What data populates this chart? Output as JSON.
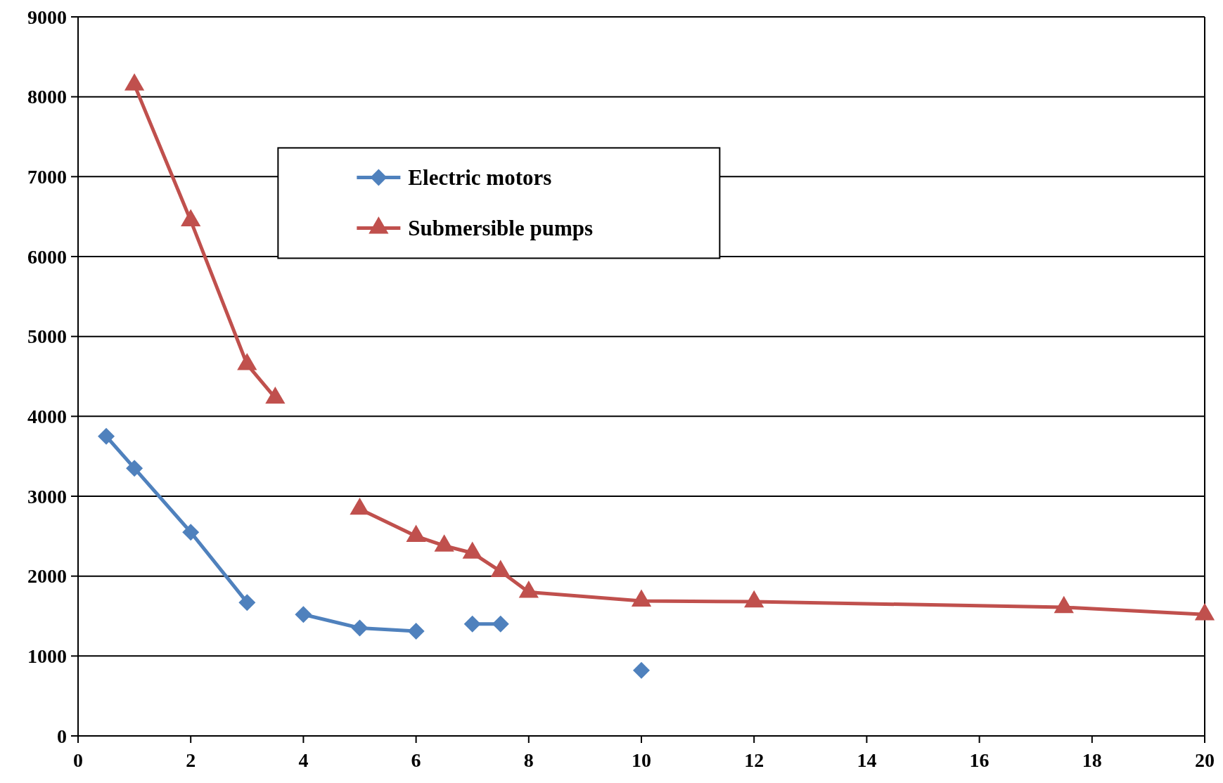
{
  "chart_data": {
    "type": "line",
    "xlim": [
      0,
      20
    ],
    "xticks": [
      0,
      2,
      4,
      6,
      8,
      10,
      12,
      14,
      16,
      18,
      20
    ],
    "ylim": [
      0,
      9000
    ],
    "yticks": [
      0,
      1000,
      2000,
      3000,
      4000,
      5000,
      6000,
      7000,
      8000,
      9000
    ],
    "grid": "y",
    "legend": "top",
    "line_style": "solid",
    "series": [
      {
        "name": "Electric motors",
        "color": "#4f81bd",
        "marker": "diamond",
        "x": [
          0.5,
          1,
          2,
          3,
          3.5,
          4,
          5,
          6,
          6.5,
          7,
          7.5,
          8.5,
          10
        ],
        "values": [
          3750,
          3350,
          2550,
          1670,
          null,
          1520,
          1350,
          1310,
          null,
          1400,
          1400,
          null,
          820
        ]
      },
      {
        "name": "Submersible pumps",
        "color": "#c0504d",
        "marker": "triangle",
        "x": [
          1,
          2,
          3,
          3.5,
          4.2,
          5,
          6,
          6.5,
          7,
          7.5,
          8,
          10,
          12,
          17.5,
          20
        ],
        "values": [
          8150,
          6450,
          4650,
          4230,
          null,
          2840,
          2500,
          2380,
          2290,
          2060,
          1800,
          1690,
          1680,
          1610,
          1520
        ]
      }
    ]
  }
}
